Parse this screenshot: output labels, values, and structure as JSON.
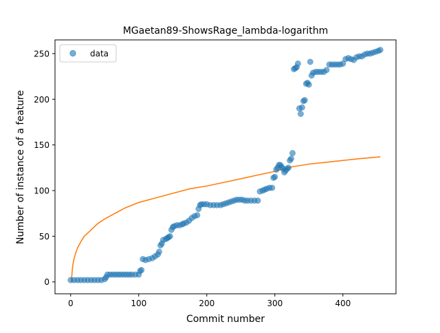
{
  "chart_data": {
    "type": "scatter",
    "title": "MGaetan89-ShowsRage_lambda-logarithm",
    "xlabel": "Commit number",
    "ylabel": "Number of instance of a feature",
    "xlim": [
      -23,
      478
    ],
    "ylim": [
      -13,
      265
    ],
    "xticks": [
      0,
      100,
      200,
      300,
      400
    ],
    "yticks": [
      0,
      50,
      100,
      150,
      200,
      250
    ],
    "grid": false,
    "legend": {
      "placement": "top-left",
      "entries": [
        "data"
      ]
    },
    "colors": {
      "data": "#1f77b4",
      "fit": "#ff7f0e"
    },
    "series": [
      {
        "name": "data",
        "kind": "scatter",
        "points": [
          [
            0,
            2
          ],
          [
            5,
            2
          ],
          [
            10,
            2
          ],
          [
            15,
            2
          ],
          [
            20,
            2
          ],
          [
            25,
            2
          ],
          [
            30,
            2
          ],
          [
            35,
            2
          ],
          [
            40,
            2
          ],
          [
            45,
            2
          ],
          [
            50,
            3
          ],
          [
            52,
            5
          ],
          [
            54,
            8
          ],
          [
            58,
            8
          ],
          [
            62,
            8
          ],
          [
            66,
            8
          ],
          [
            70,
            8
          ],
          [
            74,
            8
          ],
          [
            78,
            8
          ],
          [
            82,
            8
          ],
          [
            86,
            8
          ],
          [
            90,
            8
          ],
          [
            95,
            8
          ],
          [
            100,
            8
          ],
          [
            102,
            12
          ],
          [
            104,
            13
          ],
          [
            106,
            25
          ],
          [
            110,
            24
          ],
          [
            115,
            25
          ],
          [
            120,
            26
          ],
          [
            124,
            28
          ],
          [
            128,
            30
          ],
          [
            130,
            33
          ],
          [
            132,
            40
          ],
          [
            134,
            42
          ],
          [
            136,
            46
          ],
          [
            140,
            47
          ],
          [
            142,
            48
          ],
          [
            144,
            49
          ],
          [
            146,
            50
          ],
          [
            148,
            57
          ],
          [
            150,
            60
          ],
          [
            152,
            61
          ],
          [
            156,
            62
          ],
          [
            160,
            62
          ],
          [
            164,
            63
          ],
          [
            166,
            64
          ],
          [
            170,
            65
          ],
          [
            174,
            67
          ],
          [
            178,
            70
          ],
          [
            182,
            72
          ],
          [
            186,
            73
          ],
          [
            188,
            80
          ],
          [
            190,
            84
          ],
          [
            192,
            85
          ],
          [
            196,
            85
          ],
          [
            200,
            85
          ],
          [
            205,
            84
          ],
          [
            210,
            84
          ],
          [
            215,
            84
          ],
          [
            220,
            84
          ],
          [
            224,
            85
          ],
          [
            228,
            86
          ],
          [
            232,
            87
          ],
          [
            236,
            88
          ],
          [
            240,
            89
          ],
          [
            244,
            90
          ],
          [
            248,
            90
          ],
          [
            252,
            90
          ],
          [
            256,
            89
          ],
          [
            260,
            89
          ],
          [
            265,
            89
          ],
          [
            270,
            89
          ],
          [
            275,
            89
          ],
          [
            278,
            99
          ],
          [
            282,
            100
          ],
          [
            285,
            101
          ],
          [
            288,
            102
          ],
          [
            292,
            103
          ],
          [
            296,
            103
          ],
          [
            298,
            114
          ],
          [
            300,
            115
          ],
          [
            302,
            123
          ],
          [
            304,
            125
          ],
          [
            306,
            128
          ],
          [
            308,
            128
          ],
          [
            310,
            126
          ],
          [
            312,
            124
          ],
          [
            314,
            120
          ],
          [
            316,
            122
          ],
          [
            318,
            124
          ],
          [
            320,
            125
          ],
          [
            322,
            133
          ],
          [
            324,
            135
          ],
          [
            326,
            141
          ],
          [
            328,
            233
          ],
          [
            330,
            234
          ],
          [
            332,
            235
          ],
          [
            334,
            239
          ],
          [
            336,
            190
          ],
          [
            338,
            184
          ],
          [
            340,
            191
          ],
          [
            342,
            198
          ],
          [
            344,
            199
          ],
          [
            346,
            217
          ],
          [
            348,
            218
          ],
          [
            350,
            216
          ],
          [
            352,
            241
          ],
          [
            354,
            226
          ],
          [
            356,
            229
          ],
          [
            360,
            230
          ],
          [
            364,
            230
          ],
          [
            368,
            230
          ],
          [
            372,
            230
          ],
          [
            376,
            232
          ],
          [
            380,
            238
          ],
          [
            384,
            238
          ],
          [
            388,
            238
          ],
          [
            392,
            238
          ],
          [
            396,
            238
          ],
          [
            400,
            239
          ],
          [
            404,
            244
          ],
          [
            408,
            245
          ],
          [
            412,
            244
          ],
          [
            416,
            243
          ],
          [
            420,
            246
          ],
          [
            424,
            247
          ],
          [
            428,
            247
          ],
          [
            432,
            249
          ],
          [
            436,
            250
          ],
          [
            440,
            250
          ],
          [
            444,
            251
          ],
          [
            448,
            252
          ],
          [
            452,
            253
          ],
          [
            455,
            254
          ]
        ]
      },
      {
        "kind": "line",
        "model": "logarithmic",
        "points": [
          [
            1,
            0
          ],
          [
            2,
            10
          ],
          [
            3,
            17
          ],
          [
            4,
            22
          ],
          [
            6,
            28
          ],
          [
            8,
            33
          ],
          [
            10,
            37
          ],
          [
            15,
            44
          ],
          [
            20,
            50
          ],
          [
            30,
            57
          ],
          [
            40,
            64
          ],
          [
            50,
            69
          ],
          [
            60,
            73
          ],
          [
            70,
            77
          ],
          [
            80,
            81
          ],
          [
            90,
            84
          ],
          [
            100,
            87
          ],
          [
            125,
            92
          ],
          [
            150,
            97
          ],
          [
            175,
            102
          ],
          [
            200,
            105
          ],
          [
            225,
            109
          ],
          [
            250,
            113
          ],
          [
            275,
            117
          ],
          [
            300,
            121
          ],
          [
            325,
            126
          ],
          [
            350,
            129
          ],
          [
            375,
            131
          ],
          [
            400,
            133
          ],
          [
            425,
            135
          ],
          [
            455,
            137
          ]
        ]
      }
    ]
  }
}
